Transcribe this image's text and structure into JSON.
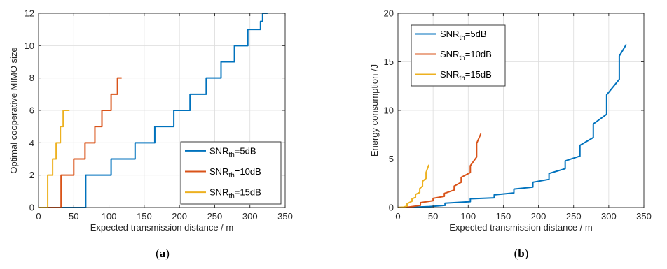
{
  "chart_data": [
    {
      "type": "line",
      "panel_id": "a",
      "caption_prefix": "(",
      "caption_letter": "a",
      "caption_suffix": ")",
      "xlabel": "Expected transmission distance / m",
      "ylabel": "Optimal cooperative MIMO size",
      "xlim": [
        0,
        350
      ],
      "ylim": [
        0,
        12
      ],
      "xticks": [
        0,
        50,
        100,
        150,
        200,
        250,
        300,
        350
      ],
      "yticks": [
        0,
        2,
        4,
        6,
        8,
        10,
        12
      ],
      "grid": true,
      "legend_position": "bottom-right",
      "series": [
        {
          "legend_base": "SNR",
          "legend_sub": "th",
          "legend_suffix": "=5dB",
          "color": "#0072BD",
          "x": [
            0,
            67,
            67,
            103,
            103,
            137,
            137,
            165,
            165,
            192,
            192,
            215,
            215,
            238,
            238,
            259,
            259,
            278,
            278,
            297,
            297,
            315,
            315,
            318,
            318,
            325
          ],
          "y": [
            0,
            0,
            2,
            2,
            3,
            3,
            4,
            4,
            5,
            5,
            6,
            6,
            7,
            7,
            8,
            8,
            9,
            9,
            10,
            10,
            11,
            11,
            11.5,
            11.5,
            12,
            12
          ]
        },
        {
          "legend_base": "SNR",
          "legend_sub": "th",
          "legend_suffix": "=10dB",
          "color": "#D95319",
          "x": [
            0,
            32,
            32,
            50,
            50,
            66,
            66,
            80,
            80,
            90,
            90,
            103,
            103,
            112,
            112,
            118
          ],
          "y": [
            0,
            0,
            2,
            2,
            3,
            3,
            4,
            4,
            5,
            5,
            6,
            6,
            7,
            7,
            8,
            8
          ]
        },
        {
          "legend_base": "SNR",
          "legend_sub": "th",
          "legend_suffix": "=15dB",
          "color": "#EDB120",
          "x": [
            0,
            13,
            13,
            20,
            20,
            25,
            25,
            31,
            31,
            35,
            35,
            40,
            40,
            44
          ],
          "y": [
            0,
            0,
            2,
            2,
            3,
            3,
            4,
            4,
            5,
            5,
            6,
            6,
            6,
            6
          ]
        }
      ]
    },
    {
      "type": "line",
      "panel_id": "b",
      "caption_prefix": "(",
      "caption_letter": "b",
      "caption_suffix": ")",
      "xlabel": "Expected transmission distance / m",
      "ylabel": "Energy consumption /J",
      "xlim": [
        0,
        350
      ],
      "ylim": [
        0,
        20
      ],
      "xticks": [
        0,
        50,
        100,
        150,
        200,
        250,
        300,
        350
      ],
      "yticks": [
        0,
        5,
        10,
        15,
        20
      ],
      "grid": true,
      "legend_position": "top-left",
      "series": [
        {
          "legend_base": "SNR",
          "legend_sub": "th",
          "legend_suffix": "=5dB",
          "color": "#0072BD",
          "x": [
            0,
            20,
            45,
            67,
            67,
            103,
            103,
            137,
            137,
            165,
            165,
            192,
            192,
            215,
            215,
            238,
            238,
            259,
            259,
            278,
            278,
            297,
            297,
            315,
            315,
            325
          ],
          "y": [
            0,
            0.03,
            0.1,
            0.22,
            0.45,
            0.6,
            0.9,
            1.0,
            1.3,
            1.5,
            1.9,
            2.1,
            2.6,
            2.9,
            3.5,
            4.0,
            4.8,
            5.3,
            6.4,
            7.2,
            8.6,
            9.6,
            11.6,
            13.2,
            15.6,
            16.8
          ]
        },
        {
          "legend_base": "SNR",
          "legend_sub": "th",
          "legend_suffix": "=10dB",
          "color": "#D95319",
          "x": [
            0,
            15,
            32,
            32,
            50,
            50,
            66,
            66,
            80,
            80,
            90,
            90,
            103,
            103,
            112,
            112,
            118
          ],
          "y": [
            0,
            0.05,
            0.22,
            0.5,
            0.7,
            0.95,
            1.15,
            1.45,
            1.8,
            2.2,
            2.6,
            3.1,
            3.6,
            4.3,
            5.2,
            6.6,
            7.6
          ]
        },
        {
          "legend_base": "SNR",
          "legend_sub": "th",
          "legend_suffix": "=15dB",
          "color": "#EDB120",
          "x": [
            0,
            8,
            13,
            13,
            20,
            20,
            25,
            25,
            31,
            31,
            35,
            35,
            40,
            40,
            44
          ],
          "y": [
            0,
            0.05,
            0.15,
            0.4,
            0.65,
            0.9,
            1.05,
            1.35,
            1.55,
            1.95,
            2.2,
            2.7,
            3.0,
            3.6,
            4.4
          ]
        }
      ]
    }
  ]
}
